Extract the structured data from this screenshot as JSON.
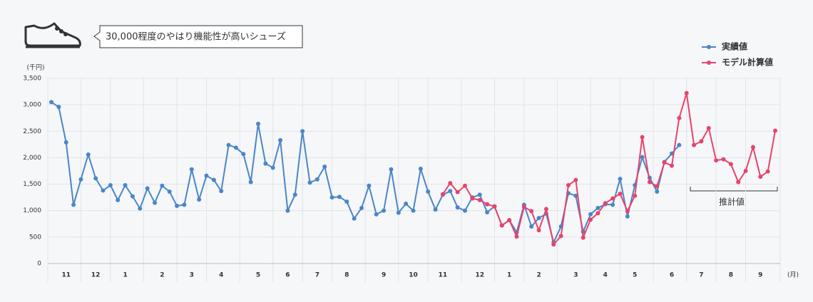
{
  "chart_data": {
    "type": "line",
    "title": "30,000程度のやはり機能性が高いシューズ",
    "y_unit_label": "(千円)",
    "x_unit_label": "(月)",
    "annotation": "推計値",
    "categories": [
      null,
      null,
      "11",
      null,
      null,
      null,
      "12",
      null,
      null,
      null,
      "1",
      null,
      null,
      null,
      null,
      "2",
      null,
      null,
      null,
      "3",
      null,
      null,
      null,
      "4",
      null,
      null,
      null,
      null,
      "5",
      null,
      null,
      null,
      "6",
      null,
      null,
      null,
      "7",
      null,
      null,
      null,
      "8",
      null,
      null,
      null,
      null,
      "9",
      null,
      null,
      null,
      "10",
      null,
      null,
      null,
      "11",
      null,
      null,
      null,
      null,
      "12",
      null,
      null,
      null,
      "1",
      null,
      null,
      null,
      "2",
      null,
      null,
      null,
      null,
      "3",
      null,
      null,
      null,
      "4",
      null,
      null,
      null,
      "5",
      null,
      null,
      null,
      null,
      "6",
      null,
      null,
      null,
      "7",
      null,
      null,
      null,
      "8",
      null,
      null,
      null,
      "9",
      null,
      null
    ],
    "series": [
      {
        "name": "実績値",
        "color": "#4a86c8",
        "values": [
          3050,
          2960,
          2290,
          1110,
          1590,
          2060,
          1610,
          1380,
          1480,
          1200,
          1480,
          1270,
          1040,
          1420,
          1150,
          1470,
          1360,
          1090,
          1110,
          1780,
          1210,
          1660,
          1580,
          1370,
          2240,
          2190,
          2070,
          1540,
          2640,
          1890,
          1810,
          2330,
          1000,
          1300,
          2500,
          1530,
          1590,
          1830,
          1250,
          1260,
          1170,
          850,
          1050,
          1470,
          930,
          1000,
          1780,
          960,
          1130,
          1000,
          1790,
          1360,
          1020,
          1300,
          1370,
          1060,
          1000,
          1250,
          1300,
          970,
          1080,
          720,
          820,
          590,
          1110,
          700,
          860,
          940,
          400,
          700,
          1330,
          1280,
          600,
          930,
          1050,
          1120,
          1110,
          1600,
          890,
          1480,
          2010,
          1620,
          1360,
          1920,
          2080,
          2240,
          null,
          null,
          null,
          null,
          null,
          null,
          null,
          null,
          null,
          null,
          null,
          null,
          null
        ]
      },
      {
        "name": "モデル計算値",
        "color": "#e8436b",
        "values": [
          null,
          null,
          null,
          null,
          null,
          null,
          null,
          null,
          null,
          null,
          null,
          null,
          null,
          null,
          null,
          null,
          null,
          null,
          null,
          null,
          null,
          null,
          null,
          null,
          null,
          null,
          null,
          null,
          null,
          null,
          null,
          null,
          null,
          null,
          null,
          null,
          null,
          null,
          null,
          null,
          null,
          null,
          null,
          null,
          null,
          null,
          null,
          null,
          null,
          null,
          null,
          null,
          null,
          1310,
          1520,
          1350,
          1470,
          1230,
          1200,
          1120,
          1080,
          720,
          820,
          510,
          1070,
          990,
          630,
          1030,
          360,
          520,
          1480,
          1580,
          490,
          830,
          950,
          1140,
          1230,
          1320,
          990,
          1280,
          2390,
          1540,
          1460,
          1910,
          1850,
          2750,
          3220,
          2240,
          2310,
          2560,
          1950,
          1970,
          1880,
          1540,
          1750,
          2200,
          1640,
          1740,
          2510
        ]
      }
    ],
    "ylim": [
      0,
      3500
    ],
    "yticks": [
      0,
      500,
      {
        "value": 1000,
        "label": "1,000"
      },
      {
        "value": 1500,
        "label": "1,500"
      },
      {
        "value": 2000,
        "label": "2,000"
      },
      {
        "value": 2500,
        "label": "2,500"
      },
      {
        "value": 3000,
        "label": "3,000"
      },
      {
        "value": 3500,
        "label": "3,500"
      }
    ],
    "grid": true
  }
}
